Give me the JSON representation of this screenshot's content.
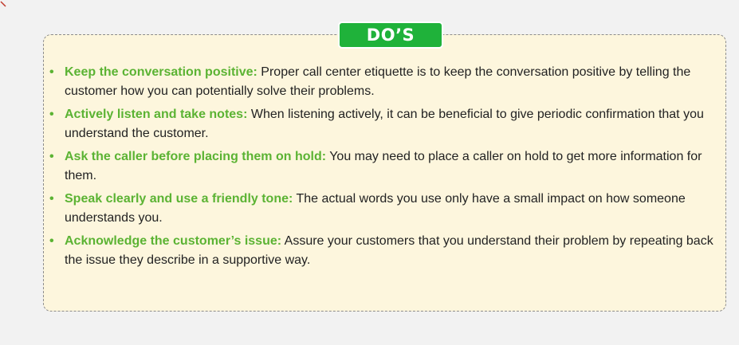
{
  "header": {
    "title": "DO’S"
  },
  "colors": {
    "accent_green": "#1fb23a",
    "tip_title_green": "#5bb333",
    "panel_background": "#fdf6dd",
    "panel_border": "#8c8c8c",
    "corner_mark": "#c0392b"
  },
  "tips": [
    {
      "title": "Keep the conversation positive:",
      "text": "Proper call center etiquette is to keep the conversation positive by telling the customer how you can potentially solve their problems."
    },
    {
      "title": "Actively listen and take notes:",
      "text": "When listening actively, it can be beneficial to give periodic confirmation that you understand the customer."
    },
    {
      "title": "Ask the caller before placing them on hold:",
      "text": "You may need to place a caller on hold to get more information for them."
    },
    {
      "title": "Speak clearly and use a friendly tone:",
      "text": "The actual words you use only have a small impact on how someone understands you."
    },
    {
      "title": "Acknowledge the customer’s issue:",
      "text": "Assure your customers that you understand their problem by repeating back the issue they describe in a supportive way."
    }
  ]
}
